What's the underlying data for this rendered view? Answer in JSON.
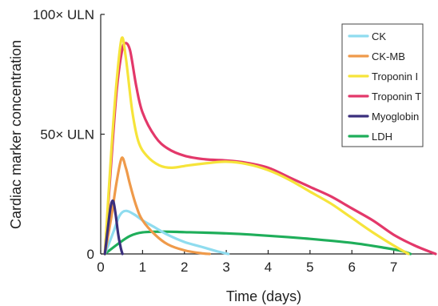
{
  "chart_data": {
    "type": "line",
    "xlabel": "Time (days)",
    "ylabel": "Cardiac marker concentration",
    "xlim": [
      0,
      8
    ],
    "ylim": [
      0,
      100
    ],
    "x_ticks": [
      0,
      1,
      2,
      3,
      4,
      5,
      6,
      7
    ],
    "y_ticks": [
      {
        "value": 0,
        "label": "0"
      },
      {
        "value": 50,
        "label": "50× ULN"
      },
      {
        "value": 100,
        "label": "100× ULN"
      }
    ],
    "legend_position": "top-right",
    "grid": false,
    "series": [
      {
        "name": "CK",
        "color": "#8fdcef",
        "points": [
          [
            0.1,
            0
          ],
          [
            0.3,
            9
          ],
          [
            0.45,
            16
          ],
          [
            0.6,
            18
          ],
          [
            0.8,
            16.5
          ],
          [
            1.0,
            14
          ],
          [
            1.3,
            11
          ],
          [
            1.6,
            8
          ],
          [
            2.0,
            5
          ],
          [
            2.4,
            3
          ],
          [
            2.8,
            1
          ],
          [
            3.05,
            0
          ]
        ]
      },
      {
        "name": "CK-MB",
        "color": "#ef9a4a",
        "points": [
          [
            0.1,
            0
          ],
          [
            0.25,
            15
          ],
          [
            0.38,
            30
          ],
          [
            0.5,
            40
          ],
          [
            0.6,
            36
          ],
          [
            0.7,
            29
          ],
          [
            0.85,
            20
          ],
          [
            1.0,
            14
          ],
          [
            1.3,
            8
          ],
          [
            1.6,
            4
          ],
          [
            2.0,
            1.5
          ],
          [
            2.4,
            0.3
          ],
          [
            2.6,
            0
          ]
        ]
      },
      {
        "name": "Troponin I",
        "color": "#f6e43a",
        "points": [
          [
            0.1,
            0
          ],
          [
            0.25,
            42
          ],
          [
            0.38,
            72
          ],
          [
            0.5,
            90
          ],
          [
            0.6,
            82
          ],
          [
            0.75,
            60
          ],
          [
            0.9,
            47
          ],
          [
            1.1,
            41
          ],
          [
            1.4,
            37
          ],
          [
            1.7,
            36
          ],
          [
            2.1,
            37
          ],
          [
            2.6,
            38
          ],
          [
            3.0,
            38.5
          ],
          [
            3.5,
            37.5
          ],
          [
            4.0,
            35
          ],
          [
            4.5,
            31
          ],
          [
            5.0,
            26
          ],
          [
            5.5,
            21
          ],
          [
            6.0,
            15
          ],
          [
            6.5,
            9
          ],
          [
            7.0,
            3.5
          ],
          [
            7.35,
            0
          ]
        ]
      },
      {
        "name": "Troponin T",
        "color": "#e3386a",
        "points": [
          [
            0.1,
            0
          ],
          [
            0.25,
            38
          ],
          [
            0.38,
            68
          ],
          [
            0.5,
            84
          ],
          [
            0.58,
            88
          ],
          [
            0.7,
            85
          ],
          [
            0.85,
            70
          ],
          [
            1.0,
            59
          ],
          [
            1.3,
            49
          ],
          [
            1.6,
            44
          ],
          [
            2.0,
            41
          ],
          [
            2.5,
            39.5
          ],
          [
            3.0,
            39
          ],
          [
            3.5,
            38
          ],
          [
            4.0,
            36
          ],
          [
            4.5,
            32
          ],
          [
            5.0,
            28
          ],
          [
            5.5,
            24
          ],
          [
            6.0,
            19
          ],
          [
            6.5,
            14
          ],
          [
            7.0,
            8
          ],
          [
            7.5,
            3.5
          ],
          [
            8.0,
            0
          ]
        ]
      },
      {
        "name": "Myoglobin",
        "color": "#3a2f7d",
        "points": [
          [
            0.1,
            0
          ],
          [
            0.18,
            12
          ],
          [
            0.24,
            20
          ],
          [
            0.3,
            22
          ],
          [
            0.36,
            16
          ],
          [
            0.42,
            8
          ],
          [
            0.48,
            2.5
          ],
          [
            0.52,
            0
          ]
        ]
      },
      {
        "name": "LDH",
        "color": "#1fae5a",
        "points": [
          [
            0.1,
            0
          ],
          [
            0.4,
            4
          ],
          [
            0.7,
            7.5
          ],
          [
            1.0,
            9
          ],
          [
            1.5,
            9.3
          ],
          [
            2.0,
            9.1
          ],
          [
            3.0,
            8.6
          ],
          [
            4.0,
            7.6
          ],
          [
            5.0,
            6.3
          ],
          [
            6.0,
            4.6
          ],
          [
            6.8,
            2.5
          ],
          [
            7.2,
            1.2
          ],
          [
            7.4,
            0
          ]
        ]
      }
    ]
  }
}
